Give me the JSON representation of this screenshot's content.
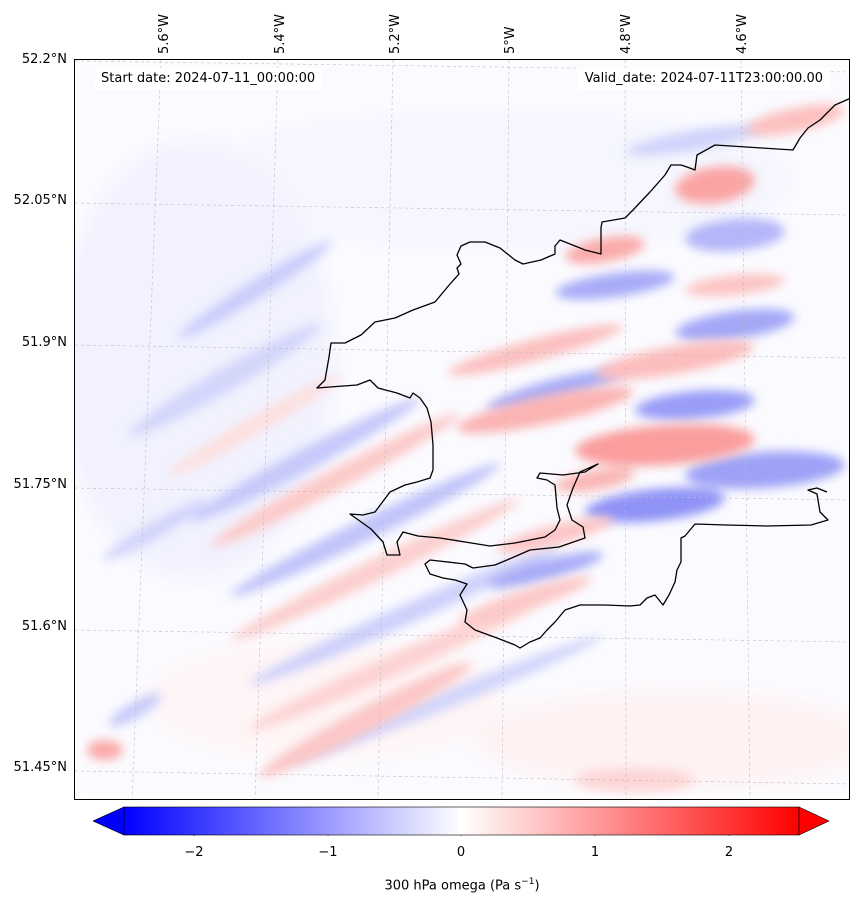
{
  "header": {
    "start_date": "Start date: 2024-07-11_00:00:00",
    "valid_date": "Valid_date: 2024-07-11T23:00:00.00"
  },
  "axes": {
    "lon_labels": [
      "5.6°W",
      "5.4°W",
      "5.2°W",
      "5°W",
      "4.8°W",
      "4.6°W"
    ],
    "lat_labels": [
      "52.2°N",
      "52.05°N",
      "51.9°N",
      "51.75°N",
      "51.6°N",
      "51.45°N"
    ]
  },
  "colorbar": {
    "ticks": [
      "−2",
      "−1",
      "0",
      "1",
      "2"
    ],
    "label_main": "300 hPa omega (Pa s",
    "label_exp": "−1",
    "label_close": ")",
    "min_color": "#0000ff",
    "mid_color": "#ffffff",
    "max_color": "#ff0000"
  },
  "map": {
    "field": "300 hPa omega",
    "colormap": "bwr",
    "gridlines": "dashed grey",
    "coastline_color": "#000000"
  }
}
